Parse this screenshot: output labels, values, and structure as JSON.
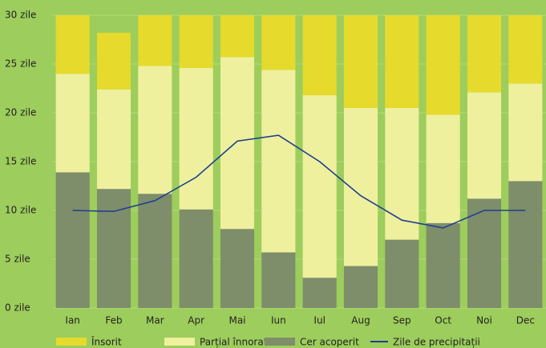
{
  "chart_data": {
    "type": "bar",
    "stacked": true,
    "categories": [
      "Ian",
      "Feb",
      "Mar",
      "Apr",
      "Mai",
      "Iun",
      "Iul",
      "Aug",
      "Sep",
      "Oct",
      "Noi",
      "Dec"
    ],
    "series": [
      {
        "name": "Cer acoperit",
        "color": "#7e8d6a",
        "values": [
          13.9,
          12.2,
          11.7,
          10.1,
          8.1,
          5.7,
          3.1,
          4.3,
          7.0,
          8.7,
          11.2,
          13.0
        ]
      },
      {
        "name": "Parțial înnorat",
        "color": "#eef09e",
        "values": [
          10.1,
          10.2,
          13.1,
          14.5,
          17.6,
          18.7,
          18.7,
          16.2,
          13.5,
          11.1,
          10.9,
          10.0
        ]
      },
      {
        "name": "Însorit",
        "color": "#e6da2c",
        "values": [
          6.0,
          5.8,
          5.2,
          5.4,
          4.3,
          5.6,
          8.2,
          9.5,
          9.5,
          10.2,
          7.9,
          7.0
        ]
      },
      {
        "name": "Zile de precipitații",
        "color": "#1f3f8f",
        "type": "line",
        "values": [
          10.0,
          9.9,
          11.0,
          13.4,
          17.1,
          17.7,
          15.0,
          11.5,
          9.0,
          8.2,
          10.0,
          10.0
        ]
      }
    ],
    "legend_order": [
      2,
      1,
      0,
      3
    ],
    "ylim": [
      0,
      30
    ],
    "yticks": [
      {
        "value": 0,
        "label": "0 zile"
      },
      {
        "value": 5,
        "label": "5 zile"
      },
      {
        "value": 10,
        "label": "10 zile"
      },
      {
        "value": 15,
        "label": "15 zile"
      },
      {
        "value": 20,
        "label": "20 zile"
      },
      {
        "value": 25,
        "label": "25 zile"
      },
      {
        "value": 30,
        "label": "30 zile"
      }
    ],
    "grid": true
  }
}
